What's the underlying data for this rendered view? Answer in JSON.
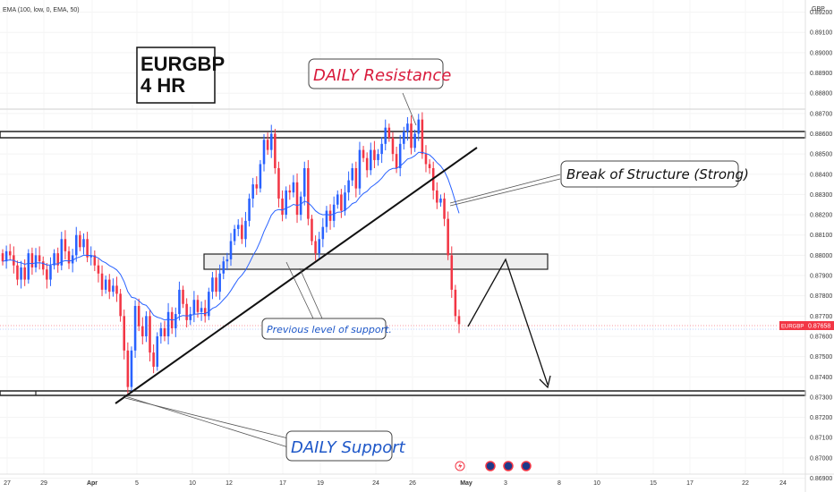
{
  "indicator_label": "EMA (100, low, 0, EMA, 50)",
  "currency": "GBP",
  "price_tag": {
    "symbol": "EURGBP",
    "price": "0.87658"
  },
  "colors": {
    "up": "#2962ff",
    "down": "#f23645",
    "ema": "#2962ff",
    "resistance_text": "#d81b3c",
    "support_text": "#1e57c8"
  },
  "annotations": {
    "title_line1": "EURGBP",
    "title_line2": "4 HR",
    "resistance": "DAILY Resistance",
    "support": "DAILY Support",
    "break_structure": "Break of Structure (Strong)",
    "prev_support": "Previous level of support."
  },
  "event_icons": [
    "lightning-icon",
    "flag-icon",
    "flag-icon",
    "flag-icon"
  ],
  "chart_data": {
    "type": "candlestick",
    "symbol": "EURGBP",
    "timeframe": "4 HR",
    "y_axis": {
      "ylim": [
        0.8692,
        0.8926
      ],
      "ticks": [
        "0.89200",
        "0.89100",
        "0.89000",
        "0.88900",
        "0.88800",
        "0.88700",
        "0.88600",
        "0.88500",
        "0.88400",
        "0.88300",
        "0.88200",
        "0.88100",
        "0.88000",
        "0.87900",
        "0.87800",
        "0.87700",
        "0.87600",
        "0.87500",
        "0.87400",
        "0.87300",
        "0.87200",
        "0.87100",
        "0.87000",
        "0.86900"
      ]
    },
    "x_axis": {
      "ticks": [
        "27",
        "29",
        "Apr",
        "5",
        "10",
        "12",
        "17",
        "19",
        "24",
        "26",
        "May",
        "3",
        "8",
        "10",
        "15",
        "17",
        "22",
        "24"
      ]
    },
    "closes": [
      0.8797,
      0.8802,
      0.88,
      0.8795,
      0.8788,
      0.8794,
      0.8788,
      0.8801,
      0.8794,
      0.88,
      0.8797,
      0.8793,
      0.8788,
      0.8795,
      0.8801,
      0.8795,
      0.8808,
      0.8802,
      0.8796,
      0.88,
      0.881,
      0.8804,
      0.8808,
      0.8799,
      0.88,
      0.8795,
      0.8791,
      0.8783,
      0.8788,
      0.8782,
      0.8785,
      0.8781,
      0.877,
      0.8753,
      0.8735,
      0.8753,
      0.8775,
      0.8765,
      0.876,
      0.877,
      0.8752,
      0.8745,
      0.876,
      0.8764,
      0.876,
      0.8772,
      0.8764,
      0.8771,
      0.8783,
      0.8776,
      0.8768,
      0.8771,
      0.8778,
      0.8772,
      0.8774,
      0.877,
      0.8782,
      0.8789,
      0.8782,
      0.8791,
      0.8797,
      0.8798,
      0.8807,
      0.8813,
      0.8815,
      0.8808,
      0.8817,
      0.8828,
      0.8835,
      0.8833,
      0.8845,
      0.8857,
      0.8852,
      0.886,
      0.8843,
      0.8828,
      0.882,
      0.8832,
      0.8831,
      0.8836,
      0.882,
      0.8829,
      0.8843,
      0.8818,
      0.8807,
      0.8801,
      0.8808,
      0.8814,
      0.8822,
      0.8817,
      0.8825,
      0.883,
      0.8822,
      0.8831,
      0.8837,
      0.8843,
      0.8833,
      0.8852,
      0.8848,
      0.8842,
      0.8852,
      0.8847,
      0.885,
      0.8855,
      0.8863,
      0.8858,
      0.885,
      0.8843,
      0.8855,
      0.8861,
      0.8865,
      0.8853,
      0.886,
      0.8867,
      0.885,
      0.8845,
      0.8843,
      0.8832,
      0.8826,
      0.8828,
      0.8818,
      0.88,
      0.8783,
      0.877,
      0.8766
    ],
    "key_levels": {
      "daily_resistance": 0.8862,
      "previous_support_zone": [
        0.8795,
        0.8802
      ],
      "daily_support": 0.8731,
      "current_price": 0.87658
    }
  }
}
